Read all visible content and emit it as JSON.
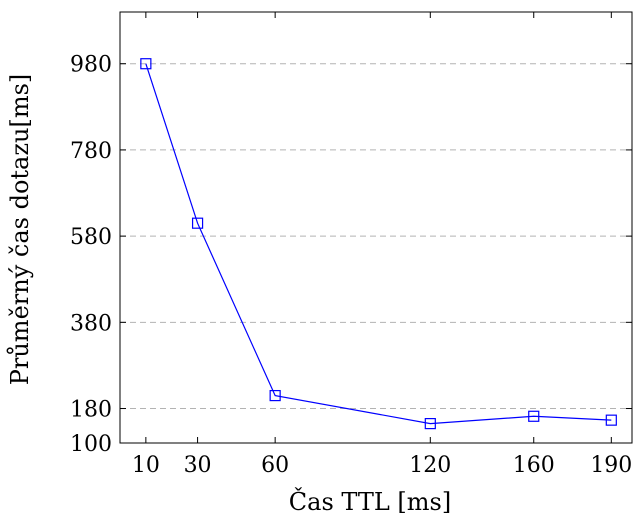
{
  "chart_data": {
    "type": "line",
    "title": "",
    "xlabel": "Čas TTL [ms]",
    "ylabel": "Průměrný čas dotazu[ms]",
    "x": [
      10,
      30,
      60,
      120,
      160,
      190
    ],
    "series": [
      {
        "values": [
          980,
          610,
          210,
          145,
          162,
          153
        ],
        "color": "#0000ff",
        "marker": "square"
      }
    ],
    "xticks": [
      10,
      30,
      60,
      120,
      160,
      190
    ],
    "yticks": [
      100,
      180,
      380,
      580,
      780,
      980
    ],
    "xlim": [
      0,
      198
    ],
    "ylim": [
      100,
      1100
    ],
    "grid": {
      "y": true,
      "x": false,
      "style": "dashed"
    }
  }
}
